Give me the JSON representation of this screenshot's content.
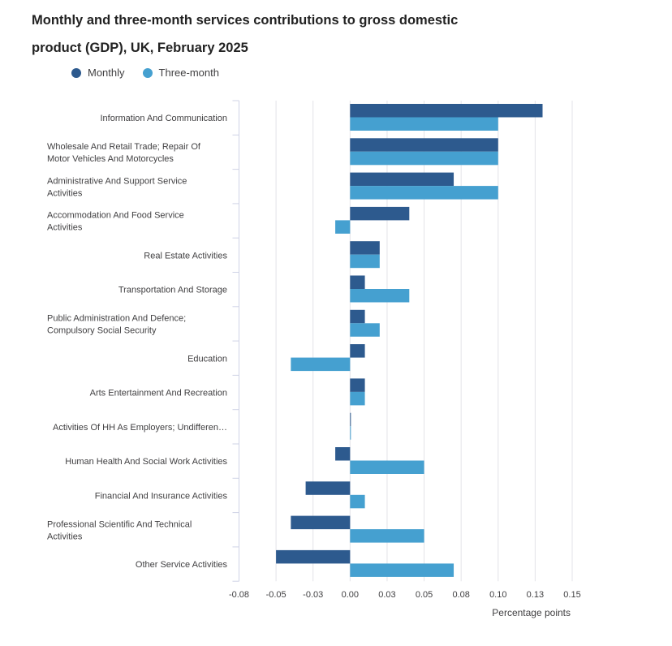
{
  "title": "Monthly and three-month services contributions to gross domestic product (GDP), UK, February 2025",
  "legend": [
    {
      "name": "Monthly",
      "color": "#2d5a8e"
    },
    {
      "name": "Three-month",
      "color": "#45a0d0"
    }
  ],
  "chart_data": {
    "type": "bar",
    "orientation": "horizontal",
    "title": "Monthly and three-month services contributions to gross domestic product (GDP), UK, February 2025",
    "xlabel": "Percentage points",
    "ylabel": "",
    "xlim": [
      -0.075,
      0.15
    ],
    "ticks": [
      -0.075,
      -0.05,
      -0.025,
      0,
      0.025,
      0.05,
      0.075,
      0.1,
      0.125,
      0.15
    ],
    "tick_labels": [
      "-0.08",
      "-0.05",
      "-0.03",
      "0.00",
      "0.03",
      "0.05",
      "0.08",
      "0.10",
      "0.13",
      "0.15"
    ],
    "grid": true,
    "categories": [
      [
        "Information And Communication"
      ],
      [
        "Wholesale And Retail Trade; Repair Of",
        "Motor Vehicles And Motorcycles"
      ],
      [
        "Administrative And Support Service",
        "Activities"
      ],
      [
        "Accommodation And Food Service",
        "Activities"
      ],
      [
        "Real Estate Activities"
      ],
      [
        "Transportation And Storage"
      ],
      [
        "Public Administration And Defence;",
        "Compulsory Social Security"
      ],
      [
        "Education"
      ],
      [
        "Arts Entertainment And Recreation"
      ],
      [
        "Activities Of HH As Employers; Undifferen…"
      ],
      [
        "Human Health And Social Work Activities"
      ],
      [
        "Financial And Insurance Activities"
      ],
      [
        "Professional Scientific And Technical",
        "Activities"
      ],
      [
        "Other Service Activities"
      ]
    ],
    "series": [
      {
        "name": "Monthly",
        "color": "#2d5a8e",
        "values": [
          0.13,
          0.1,
          0.07,
          0.04,
          0.02,
          0.01,
          0.01,
          0.01,
          0.01,
          0.0,
          -0.01,
          -0.03,
          -0.04,
          -0.05
        ]
      },
      {
        "name": "Three-month",
        "color": "#45a0d0",
        "values": [
          0.1,
          0.1,
          0.1,
          -0.01,
          0.02,
          0.04,
          0.02,
          -0.04,
          0.01,
          0.0,
          0.05,
          0.01,
          0.05,
          0.07
        ]
      }
    ]
  }
}
